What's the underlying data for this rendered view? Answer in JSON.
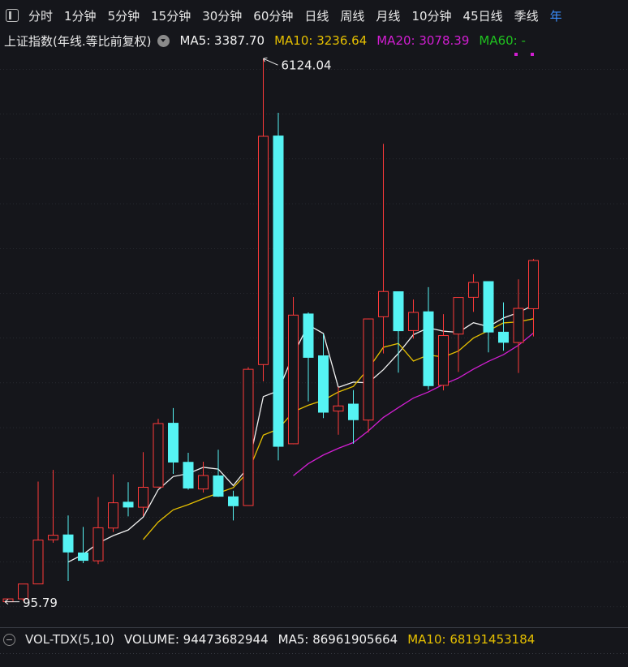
{
  "toolbar": {
    "tabs": [
      "分时",
      "1分钟",
      "5分钟",
      "15分钟",
      "30分钟",
      "60分钟",
      "日线",
      "周线",
      "月线",
      "10分钟",
      "45日线",
      "季线",
      "年"
    ],
    "active": 12
  },
  "main_header": {
    "title": "上证指数(年线.等比前复权)",
    "indicators": [
      {
        "text": "MA5: 3387.70",
        "color": "#f2f2f2"
      },
      {
        "text": "MA10: 3236.64",
        "color": "#e6c000"
      },
      {
        "text": "MA20: 3078.39",
        "color": "#d21ed2"
      },
      {
        "text": "MA60: -",
        "color": "#1fc21f"
      }
    ]
  },
  "chart_data": {
    "type": "candlestick",
    "up_color": "#ff3a3a",
    "down_color": "#55f3f3",
    "ylim": [
      -160,
      6450
    ],
    "open": [
      96.05,
      127.61,
      293.74,
      784.13,
      837.7,
      637.72,
      550.26,
      914.06,
      1200.95,
      1144.89,
      1368.69,
      2077.08,
      1643.48,
      1347.43,
      1492.72,
      1260.78,
      1163.88,
      2728.19,
      5265.0,
      1849.02,
      3289.75,
      2825.33,
      2212.0,
      2289.51,
      2112.13,
      3258.63,
      3536.59,
      3105.31,
      3314.03,
      2497.88,
      3066.34,
      3474.68,
      3649.15,
      3087.51,
      2972.78,
      3347.94
    ],
    "high": [
      127.61,
      292.75,
      1429.01,
      1558.95,
      1052.94,
      926.41,
      1258.69,
      1510.18,
      1422.98,
      1756.18,
      2125.72,
      2245.43,
      1748.89,
      1649.6,
      1783.01,
      1328.53,
      2698.9,
      6124.04,
      5522.78,
      3478.01,
      3306.75,
      3067.46,
      2478.38,
      2444.8,
      3239.36,
      5178.19,
      3538.69,
      3450.49,
      3587.03,
      3288.45,
      3474.92,
      3731.69,
      3651.89,
      3418.95,
      3674.4,
      3899.96
    ],
    "low": [
      95.79,
      104.96,
      292.76,
      750.46,
      325.89,
      524.43,
      512.83,
      870.18,
      1043.02,
      1047.83,
      1361.21,
      1514.86,
      1339.2,
      1307.4,
      1259.43,
      998.23,
      1161.91,
      2541.52,
      1664.93,
      1844.09,
      2319.74,
      2134.02,
      1949.46,
      1849.65,
      1974.38,
      2850.71,
      2638.3,
      3016.53,
      2449.2,
      2440.91,
      2646.8,
      3312.72,
      2863.65,
      2882.02,
      2635.09,
      3040.69
    ],
    "close": [
      127.61,
      292.75,
      780.39,
      833.8,
      647.87,
      555.29,
      917.02,
      1194.1,
      1146.7,
      1366.58,
      2073.48,
      1645.97,
      1357.65,
      1497.04,
      1266.5,
      1161.06,
      2675.47,
      5261.56,
      1820.81,
      3277.14,
      2808.08,
      2199.42,
      2269.13,
      2115.98,
      3234.68,
      3539.18,
      3103.64,
      3307.17,
      2493.9,
      3050.12,
      3473.07,
      3639.78,
      3089.26,
      2974.93,
      3351.76,
      3882.78
    ],
    "series": [
      {
        "name": "MA5",
        "color": "#f2f2f2",
        "values": [
          null,
          null,
          null,
          null,
          536.48,
          622.02,
          746.87,
          829.62,
          892.2,
          1035.94,
          1339.58,
          1485.37,
          1518.08,
          1588.14,
          1568.13,
          1385.64,
          1591.54,
          2372.33,
          2437.08,
          2839.21,
          3168.61,
          3073.4,
          2474.92,
          2533.95,
          2525.46,
          2671.68,
          2852.52,
          3060.13,
          3135.71,
          3098.8,
          3085.58,
          3192.81,
          3149.23,
          3245.43,
          3305.76,
          3387.7
        ]
      },
      {
        "name": "MA10",
        "color": "#e6c000",
        "values": [
          null,
          null,
          null,
          null,
          null,
          null,
          null,
          null,
          null,
          786.21,
          980.8,
          1116.12,
          1173.85,
          1240.17,
          1302.03,
          1362.61,
          1538.46,
          1945.2,
          2012.61,
          2203.67,
          2277.13,
          2332.47,
          2423.62,
          2485.52,
          2682.33,
          2920.15,
          2962.96,
          2767.52,
          2834.83,
          2812.13,
          2878.63,
          3022.67,
          3104.68,
          3190.57,
          3202.28,
          3236.64
        ]
      },
      {
        "name": "MA20",
        "color": "#d21ed2",
        "values": [
          null,
          null,
          null,
          null,
          null,
          null,
          null,
          null,
          null,
          null,
          null,
          null,
          null,
          null,
          null,
          null,
          null,
          null,
          null,
          1494.94,
          1628.96,
          1724.3,
          1798.73,
          1862.84,
          1992.18,
          2141.38,
          2250.71,
          2356.36,
          2423.72,
          2507.9,
          2577.88,
          2677.57,
          2764.15,
          2838.04,
          2942.31,
          3078.39
        ]
      }
    ]
  },
  "volume_header": {
    "title": "VOL-TDX(5,10)",
    "indicators": [
      {
        "text": "VOLUME: 94473682944",
        "color": "#f2f2f2"
      },
      {
        "text": "MA5: 86961905664",
        "color": "#f2f2f2"
      },
      {
        "text": "MA10: 68191453184",
        "color": "#e6c000"
      }
    ]
  }
}
